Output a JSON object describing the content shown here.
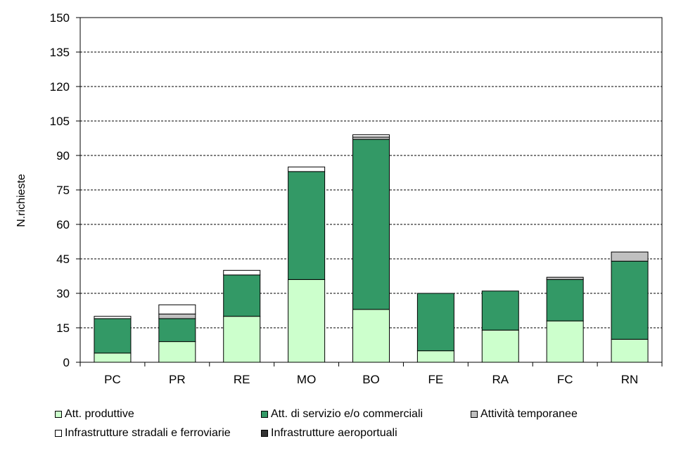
{
  "chart_data": {
    "type": "bar",
    "stacked": true,
    "ylabel": "N.richieste",
    "xlabel": "",
    "ylim": [
      0,
      150
    ],
    "yticks": [
      0,
      15,
      30,
      45,
      60,
      75,
      90,
      105,
      120,
      135,
      150
    ],
    "grid": true,
    "legend_position": "bottom",
    "categories": [
      "PC",
      "PR",
      "RE",
      "MO",
      "BO",
      "FE",
      "RA",
      "FC",
      "RN"
    ],
    "series": [
      {
        "name": "Att. produttive",
        "color": "#ccffcc",
        "values": [
          4,
          9,
          20,
          36,
          23,
          5,
          14,
          18,
          10
        ]
      },
      {
        "name": "Att. di servizio e/o commerciali",
        "color": "#339966",
        "values": [
          15,
          10,
          18,
          47,
          74,
          25,
          17,
          18,
          34
        ]
      },
      {
        "name": "Attività temporanee",
        "color": "#c0c0c0",
        "values": [
          0,
          2,
          0,
          0,
          1,
          0,
          0,
          1,
          4
        ]
      },
      {
        "name": "Infrastrutture stradali e ferroviarie",
        "color": "#ffffff",
        "values": [
          1,
          4,
          2,
          2,
          1,
          0,
          0,
          0,
          0
        ]
      },
      {
        "name": "Infrastrutture aeroportuali",
        "color": "#333333",
        "values": [
          0,
          0,
          0,
          0,
          0,
          0,
          0,
          0,
          0
        ]
      }
    ]
  }
}
